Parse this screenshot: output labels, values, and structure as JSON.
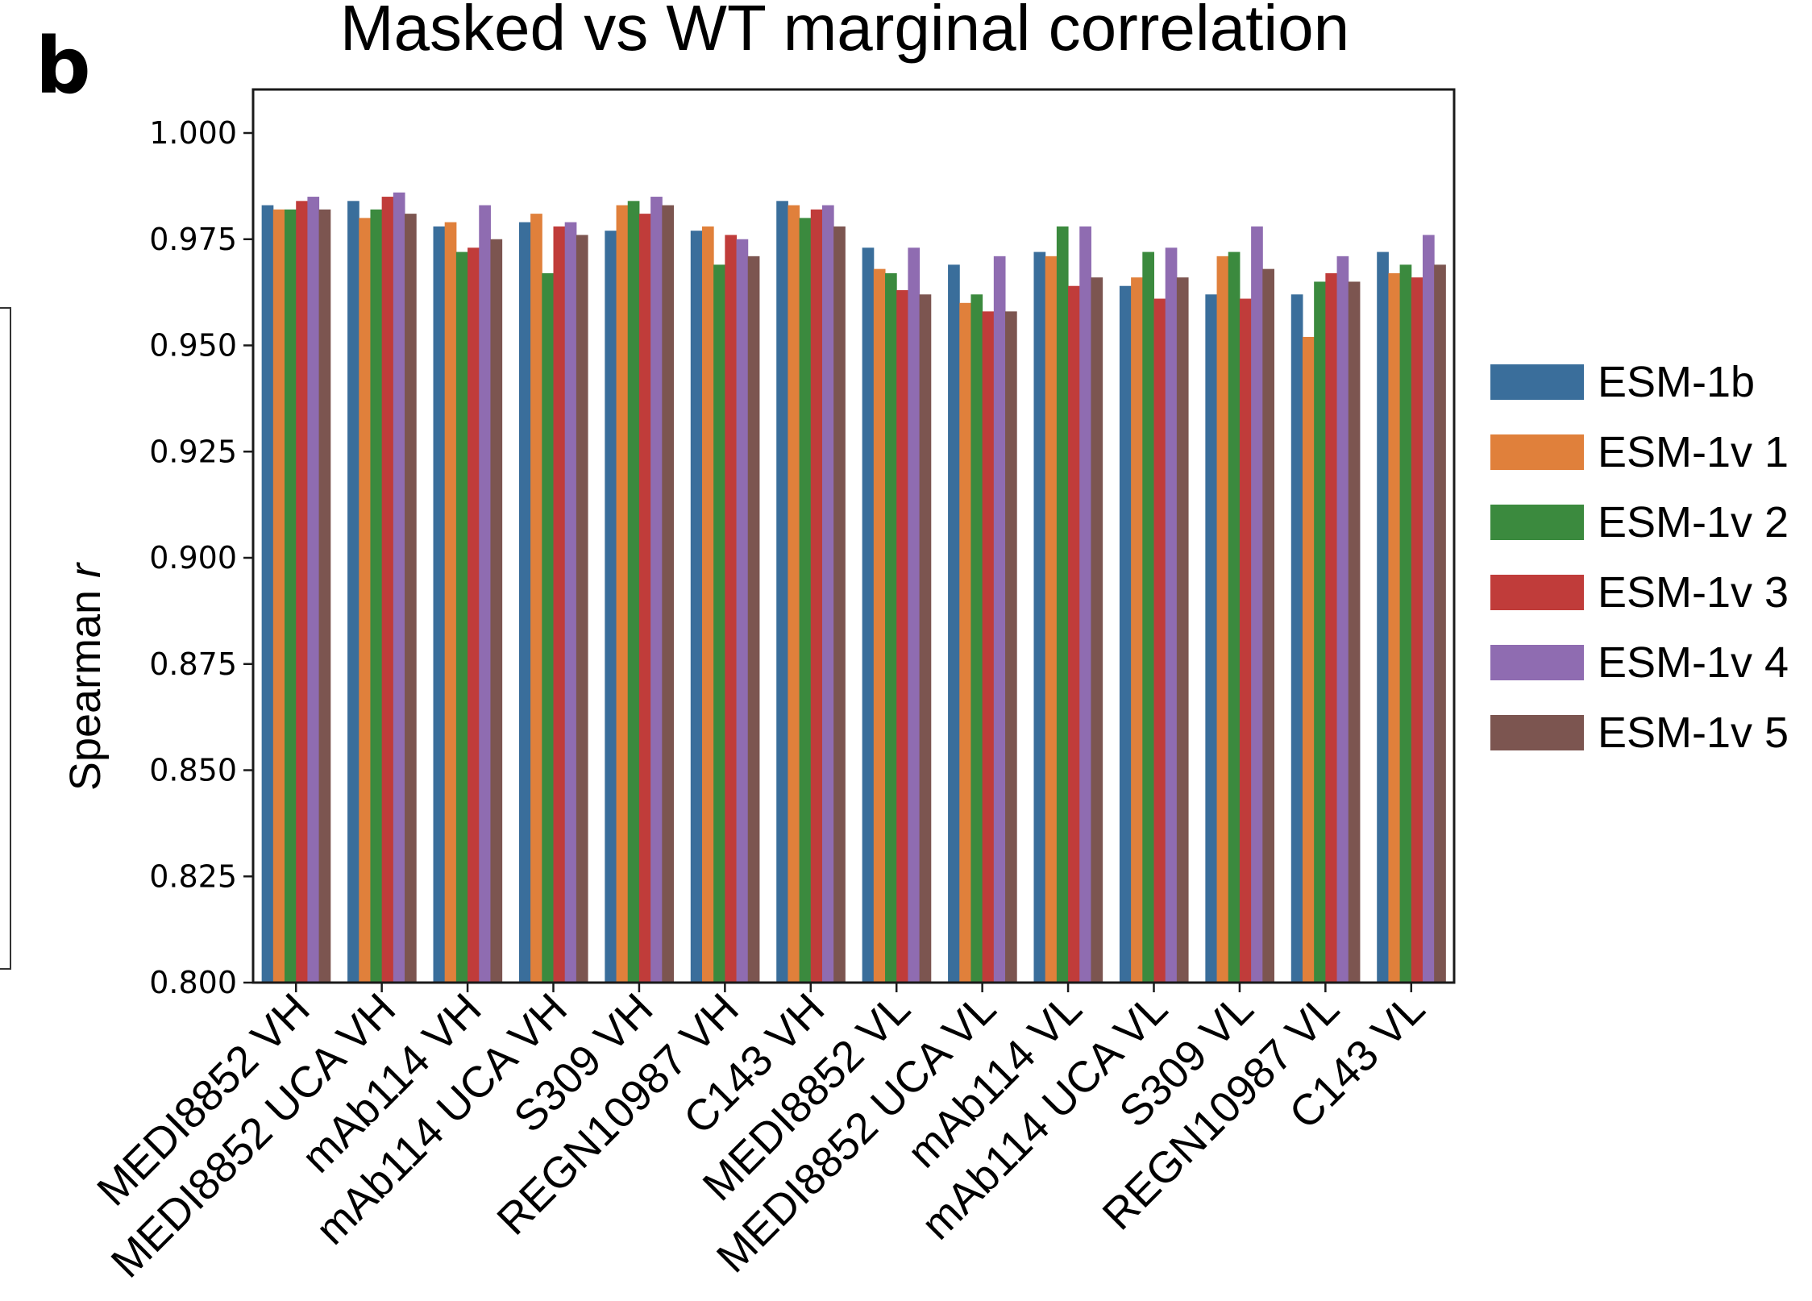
{
  "panel_label": "b",
  "chart_data": {
    "type": "bar",
    "title": "Masked vs WT marginal correlation",
    "xlabel": "",
    "ylabel": "Spearman r",
    "ylim": [
      0.8,
      1.0
    ],
    "yticks": [
      "0.800",
      "0.825",
      "0.850",
      "0.875",
      "0.900",
      "0.925",
      "0.950",
      "0.975",
      "1.000"
    ],
    "legend_position": "right",
    "categories": [
      "MEDI8852 VH",
      "MEDI8852 UCA VH",
      "mAb114 VH",
      "mAb114 UCA VH",
      "S309 VH",
      "REGN10987 VH",
      "C143 VH",
      "MEDI8852 VL",
      "MEDI8852 UCA VL",
      "mAb114 VL",
      "mAb114 UCA VL",
      "S309 VL",
      "REGN10987 VL",
      "C143 VL"
    ],
    "series": [
      {
        "name": "ESM-1b",
        "color": "#3a6e9b",
        "values": [
          0.983,
          0.984,
          0.978,
          0.979,
          0.977,
          0.977,
          0.984,
          0.973,
          0.969,
          0.972,
          0.964,
          0.962,
          0.962,
          0.972
        ]
      },
      {
        "name": "ESM-1v 1",
        "color": "#e0803b",
        "values": [
          0.982,
          0.98,
          0.979,
          0.981,
          0.983,
          0.978,
          0.983,
          0.968,
          0.96,
          0.971,
          0.966,
          0.971,
          0.952,
          0.967
        ]
      },
      {
        "name": "ESM-1v 2",
        "color": "#3b8a3e",
        "values": [
          0.982,
          0.982,
          0.972,
          0.967,
          0.984,
          0.969,
          0.98,
          0.967,
          0.962,
          0.978,
          0.972,
          0.972,
          0.965,
          0.969
        ]
      },
      {
        "name": "ESM-1v 3",
        "color": "#c03c3a",
        "values": [
          0.984,
          0.985,
          0.973,
          0.978,
          0.981,
          0.976,
          0.982,
          0.963,
          0.958,
          0.964,
          0.961,
          0.961,
          0.967,
          0.966
        ]
      },
      {
        "name": "ESM-1v 4",
        "color": "#8f6cb1",
        "values": [
          0.985,
          0.986,
          0.983,
          0.979,
          0.985,
          0.975,
          0.983,
          0.973,
          0.971,
          0.978,
          0.973,
          0.978,
          0.971,
          0.976
        ]
      },
      {
        "name": "ESM-1v 5",
        "color": "#7c5550",
        "values": [
          0.982,
          0.981,
          0.975,
          0.976,
          0.983,
          0.971,
          0.978,
          0.962,
          0.958,
          0.966,
          0.966,
          0.968,
          0.965,
          0.969
        ]
      }
    ]
  }
}
